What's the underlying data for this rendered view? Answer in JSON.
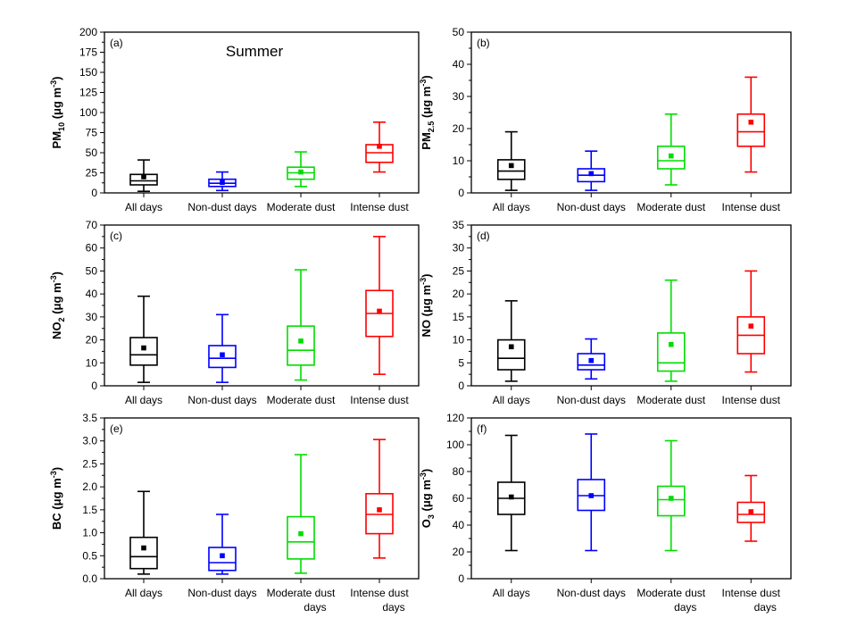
{
  "chart_data": [
    {
      "type": "box",
      "panel_label": "(a)",
      "title": "Summer",
      "ylabel": {
        "base": "PM",
        "sub": "10",
        "unit_pre": " (μg m",
        "sup": "-3",
        "unit_post": ")"
      },
      "ylim": [
        0,
        200
      ],
      "yticks": [
        0,
        25,
        50,
        75,
        100,
        125,
        150,
        175,
        200
      ],
      "categories": [
        [
          "All days"
        ],
        [
          "Non-dust days"
        ],
        [
          "Moderate dust"
        ],
        [
          "Intense dust"
        ]
      ],
      "colors": [
        "#000000",
        "#0000ff",
        "#00dd00",
        "#ff0000"
      ],
      "boxes": [
        {
          "min": 2,
          "q1": 10,
          "median": 15,
          "q3": 23,
          "max": 41,
          "mean": 20
        },
        {
          "min": 3,
          "q1": 8,
          "median": 12,
          "q3": 17,
          "max": 26,
          "mean": 13
        },
        {
          "min": 8,
          "q1": 17,
          "median": 25,
          "q3": 32,
          "max": 51,
          "mean": 26
        },
        {
          "min": 26,
          "q1": 38,
          "median": 50,
          "q3": 60,
          "max": 88,
          "mean": 58
        }
      ]
    },
    {
      "type": "box",
      "panel_label": "(b)",
      "title": "",
      "ylabel": {
        "base": "PM",
        "sub": "2.5",
        "unit_pre": " (μg m",
        "sup": "-3",
        "unit_post": ")"
      },
      "ylim": [
        0,
        50
      ],
      "yticks": [
        0,
        10,
        20,
        30,
        40,
        50
      ],
      "categories": [
        [
          "All days"
        ],
        [
          "Non-dust days"
        ],
        [
          "Moderate dust"
        ],
        [
          "Intense dust"
        ]
      ],
      "colors": [
        "#000000",
        "#0000ff",
        "#00dd00",
        "#ff0000"
      ],
      "boxes": [
        {
          "min": 0.8,
          "q1": 4.2,
          "median": 6.8,
          "q3": 10.3,
          "max": 19,
          "mean": 8.5
        },
        {
          "min": 0.8,
          "q1": 3.5,
          "median": 5.5,
          "q3": 7.5,
          "max": 13,
          "mean": 6
        },
        {
          "min": 2.5,
          "q1": 7.5,
          "median": 10,
          "q3": 14.5,
          "max": 24.5,
          "mean": 11.5
        },
        {
          "min": 6.5,
          "q1": 14.5,
          "median": 19,
          "q3": 24.5,
          "max": 36,
          "mean": 22
        }
      ]
    },
    {
      "type": "box",
      "panel_label": "(c)",
      "title": "",
      "ylabel": {
        "base": "NO",
        "sub": "2",
        "unit_pre": " (μg m",
        "sup": "-3",
        "unit_post": ")"
      },
      "ylim": [
        0,
        70
      ],
      "yticks": [
        0,
        10,
        20,
        30,
        40,
        50,
        60,
        70
      ],
      "categories": [
        [
          "All days"
        ],
        [
          "Non-dust days"
        ],
        [
          "Moderate dust"
        ],
        [
          "Intense dust"
        ]
      ],
      "colors": [
        "#000000",
        "#0000ff",
        "#00dd00",
        "#ff0000"
      ],
      "boxes": [
        {
          "min": 1.5,
          "q1": 9,
          "median": 13.5,
          "q3": 21,
          "max": 39,
          "mean": 16.5
        },
        {
          "min": 1.5,
          "q1": 8,
          "median": 12,
          "q3": 17.5,
          "max": 31,
          "mean": 13.5
        },
        {
          "min": 2.5,
          "q1": 9,
          "median": 15.5,
          "q3": 26,
          "max": 50.5,
          "mean": 19.5
        },
        {
          "min": 5,
          "q1": 21.5,
          "median": 31.5,
          "q3": 41.5,
          "max": 65,
          "mean": 32.5
        }
      ]
    },
    {
      "type": "box",
      "panel_label": "(d)",
      "title": "",
      "ylabel": {
        "base": "NO",
        "sub": "",
        "unit_pre": " (μg m",
        "sup": "-3",
        "unit_post": ")"
      },
      "ylim": [
        0,
        35
      ],
      "yticks": [
        0,
        5,
        10,
        15,
        20,
        25,
        30,
        35
      ],
      "categories": [
        [
          "All days"
        ],
        [
          "Non-dust days"
        ],
        [
          "Moderate dust"
        ],
        [
          "Intense dust"
        ]
      ],
      "colors": [
        "#000000",
        "#0000ff",
        "#00dd00",
        "#ff0000"
      ],
      "boxes": [
        {
          "min": 1,
          "q1": 3.5,
          "median": 6,
          "q3": 10,
          "max": 18.5,
          "mean": 8.5
        },
        {
          "min": 1.5,
          "q1": 3.5,
          "median": 4.5,
          "q3": 7,
          "max": 10.2,
          "mean": 5.5
        },
        {
          "min": 1,
          "q1": 3.2,
          "median": 5,
          "q3": 11.5,
          "max": 23,
          "mean": 9
        },
        {
          "min": 3,
          "q1": 7,
          "median": 11,
          "q3": 15,
          "max": 25,
          "mean": 13
        }
      ]
    },
    {
      "type": "box",
      "panel_label": "(e)",
      "title": "",
      "ylabel": {
        "base": "BC",
        "sub": "",
        "unit_pre": " (μg m",
        "sup": "-3",
        "unit_post": ")"
      },
      "ylim": [
        0,
        3.5
      ],
      "yticks": [
        0,
        0.5,
        1,
        1.5,
        2,
        2.5,
        3,
        3.5
      ],
      "ytick_decimals": 1,
      "categories": [
        [
          "All days"
        ],
        [
          "Non-dust days"
        ],
        [
          "Moderate dust",
          "days"
        ],
        [
          "Intense dust",
          "days"
        ]
      ],
      "colors": [
        "#000000",
        "#0000ff",
        "#00dd00",
        "#ff0000"
      ],
      "boxes": [
        {
          "min": 0.1,
          "q1": 0.22,
          "median": 0.48,
          "q3": 0.9,
          "max": 1.9,
          "mean": 0.67
        },
        {
          "min": 0.1,
          "q1": 0.18,
          "median": 0.35,
          "q3": 0.68,
          "max": 1.4,
          "mean": 0.5
        },
        {
          "min": 0.12,
          "q1": 0.43,
          "median": 0.8,
          "q3": 1.35,
          "max": 2.7,
          "mean": 0.98
        },
        {
          "min": 0.45,
          "q1": 0.98,
          "median": 1.4,
          "q3": 1.85,
          "max": 3.03,
          "mean": 1.5
        }
      ]
    },
    {
      "type": "box",
      "panel_label": "(f)",
      "title": "",
      "ylabel": {
        "base": "O",
        "sub": "3",
        "unit_pre": " (μg m",
        "sup": "-3",
        "unit_post": ")"
      },
      "ylim": [
        0,
        120
      ],
      "yticks": [
        0,
        20,
        40,
        60,
        80,
        100,
        120
      ],
      "categories": [
        [
          "All days"
        ],
        [
          "Non-dust days"
        ],
        [
          "Moderate dust",
          "days"
        ],
        [
          "Intense dust",
          "days"
        ]
      ],
      "colors": [
        "#000000",
        "#0000ff",
        "#00dd00",
        "#ff0000"
      ],
      "boxes": [
        {
          "min": 21,
          "q1": 48,
          "median": 60,
          "q3": 72,
          "max": 107,
          "mean": 61
        },
        {
          "min": 21,
          "q1": 51,
          "median": 62,
          "q3": 74,
          "max": 108,
          "mean": 62
        },
        {
          "min": 21,
          "q1": 47,
          "median": 59,
          "q3": 69,
          "max": 103,
          "mean": 60
        },
        {
          "min": 28,
          "q1": 42,
          "median": 48,
          "q3": 57,
          "max": 77,
          "mean": 50
        }
      ]
    }
  ]
}
